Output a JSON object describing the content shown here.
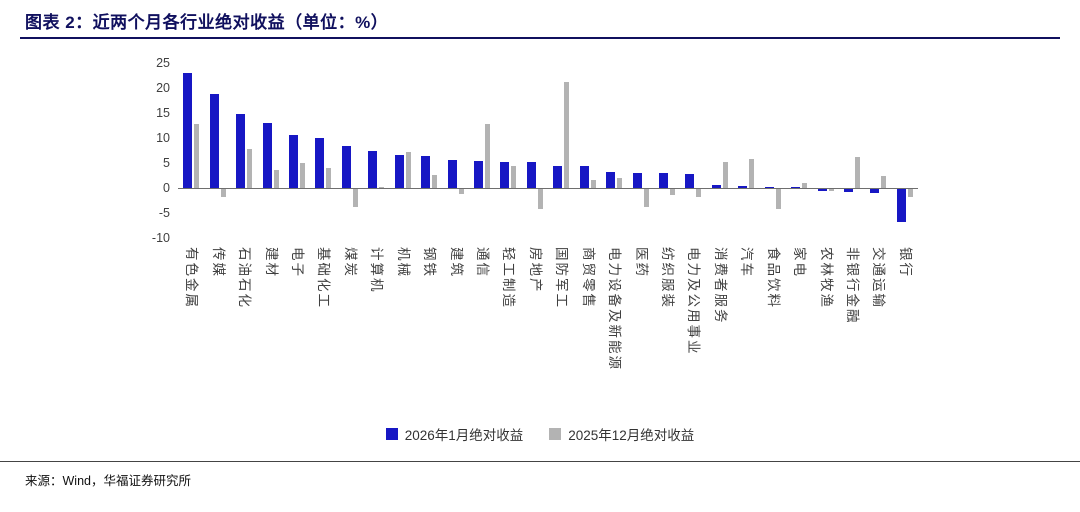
{
  "header": {
    "title": "图表 2：近两个月各行业绝对收益（单位：%）"
  },
  "footer": {
    "source": "来源：Wind，华福证券研究所"
  },
  "chart_data": {
    "type": "bar",
    "title": "近两个月各行业绝对收益（单位：%）",
    "xlabel": "",
    "ylabel": "",
    "ylim": [
      -10,
      25
    ],
    "yticks": [
      25,
      20,
      15,
      10,
      5,
      0,
      -5,
      -10
    ],
    "grid": false,
    "legend_position": "bottom",
    "categories": [
      "有色金属",
      "传媒",
      "石油石化",
      "建材",
      "电子",
      "基础化工",
      "煤炭",
      "计算机",
      "机械",
      "钢铁",
      "建筑",
      "通信",
      "轻工制造",
      "房地产",
      "国防军工",
      "商贸零售",
      "电力设备及新能源",
      "医药",
      "纺织服装",
      "电力及公用事业",
      "消费者服务",
      "汽车",
      "食品饮料",
      "家电",
      "农林牧渔",
      "非银行金融",
      "交通运输",
      "银行"
    ],
    "series": [
      {
        "name": "2026年1月绝对收益",
        "color": "#1717C4",
        "values": [
          23,
          18.8,
          14.8,
          13,
          10.6,
          10,
          8.4,
          7.5,
          6.6,
          6.4,
          5.6,
          5.5,
          5.3,
          5.2,
          4.5,
          4.4,
          3.3,
          3.1,
          3.0,
          2.8,
          0.7,
          0.5,
          0.3,
          0.2,
          -0.4,
          -0.5,
          -0.7,
          -6.6
        ]
      },
      {
        "name": "2025年12月绝对收益",
        "color": "#B3B3B3",
        "values": [
          12.9,
          -1.6,
          7.9,
          3.6,
          5.0,
          4.1,
          -3.6,
          0.3,
          7.3,
          2.7,
          -1.0,
          12.8,
          4.4,
          -4.0,
          21.2,
          1.6,
          2.1,
          -3.5,
          -1.2,
          -1.5,
          5.3,
          5.9,
          -3.9,
          1.0,
          -0.4,
          6.3,
          2.4,
          -1.6
        ]
      }
    ]
  }
}
